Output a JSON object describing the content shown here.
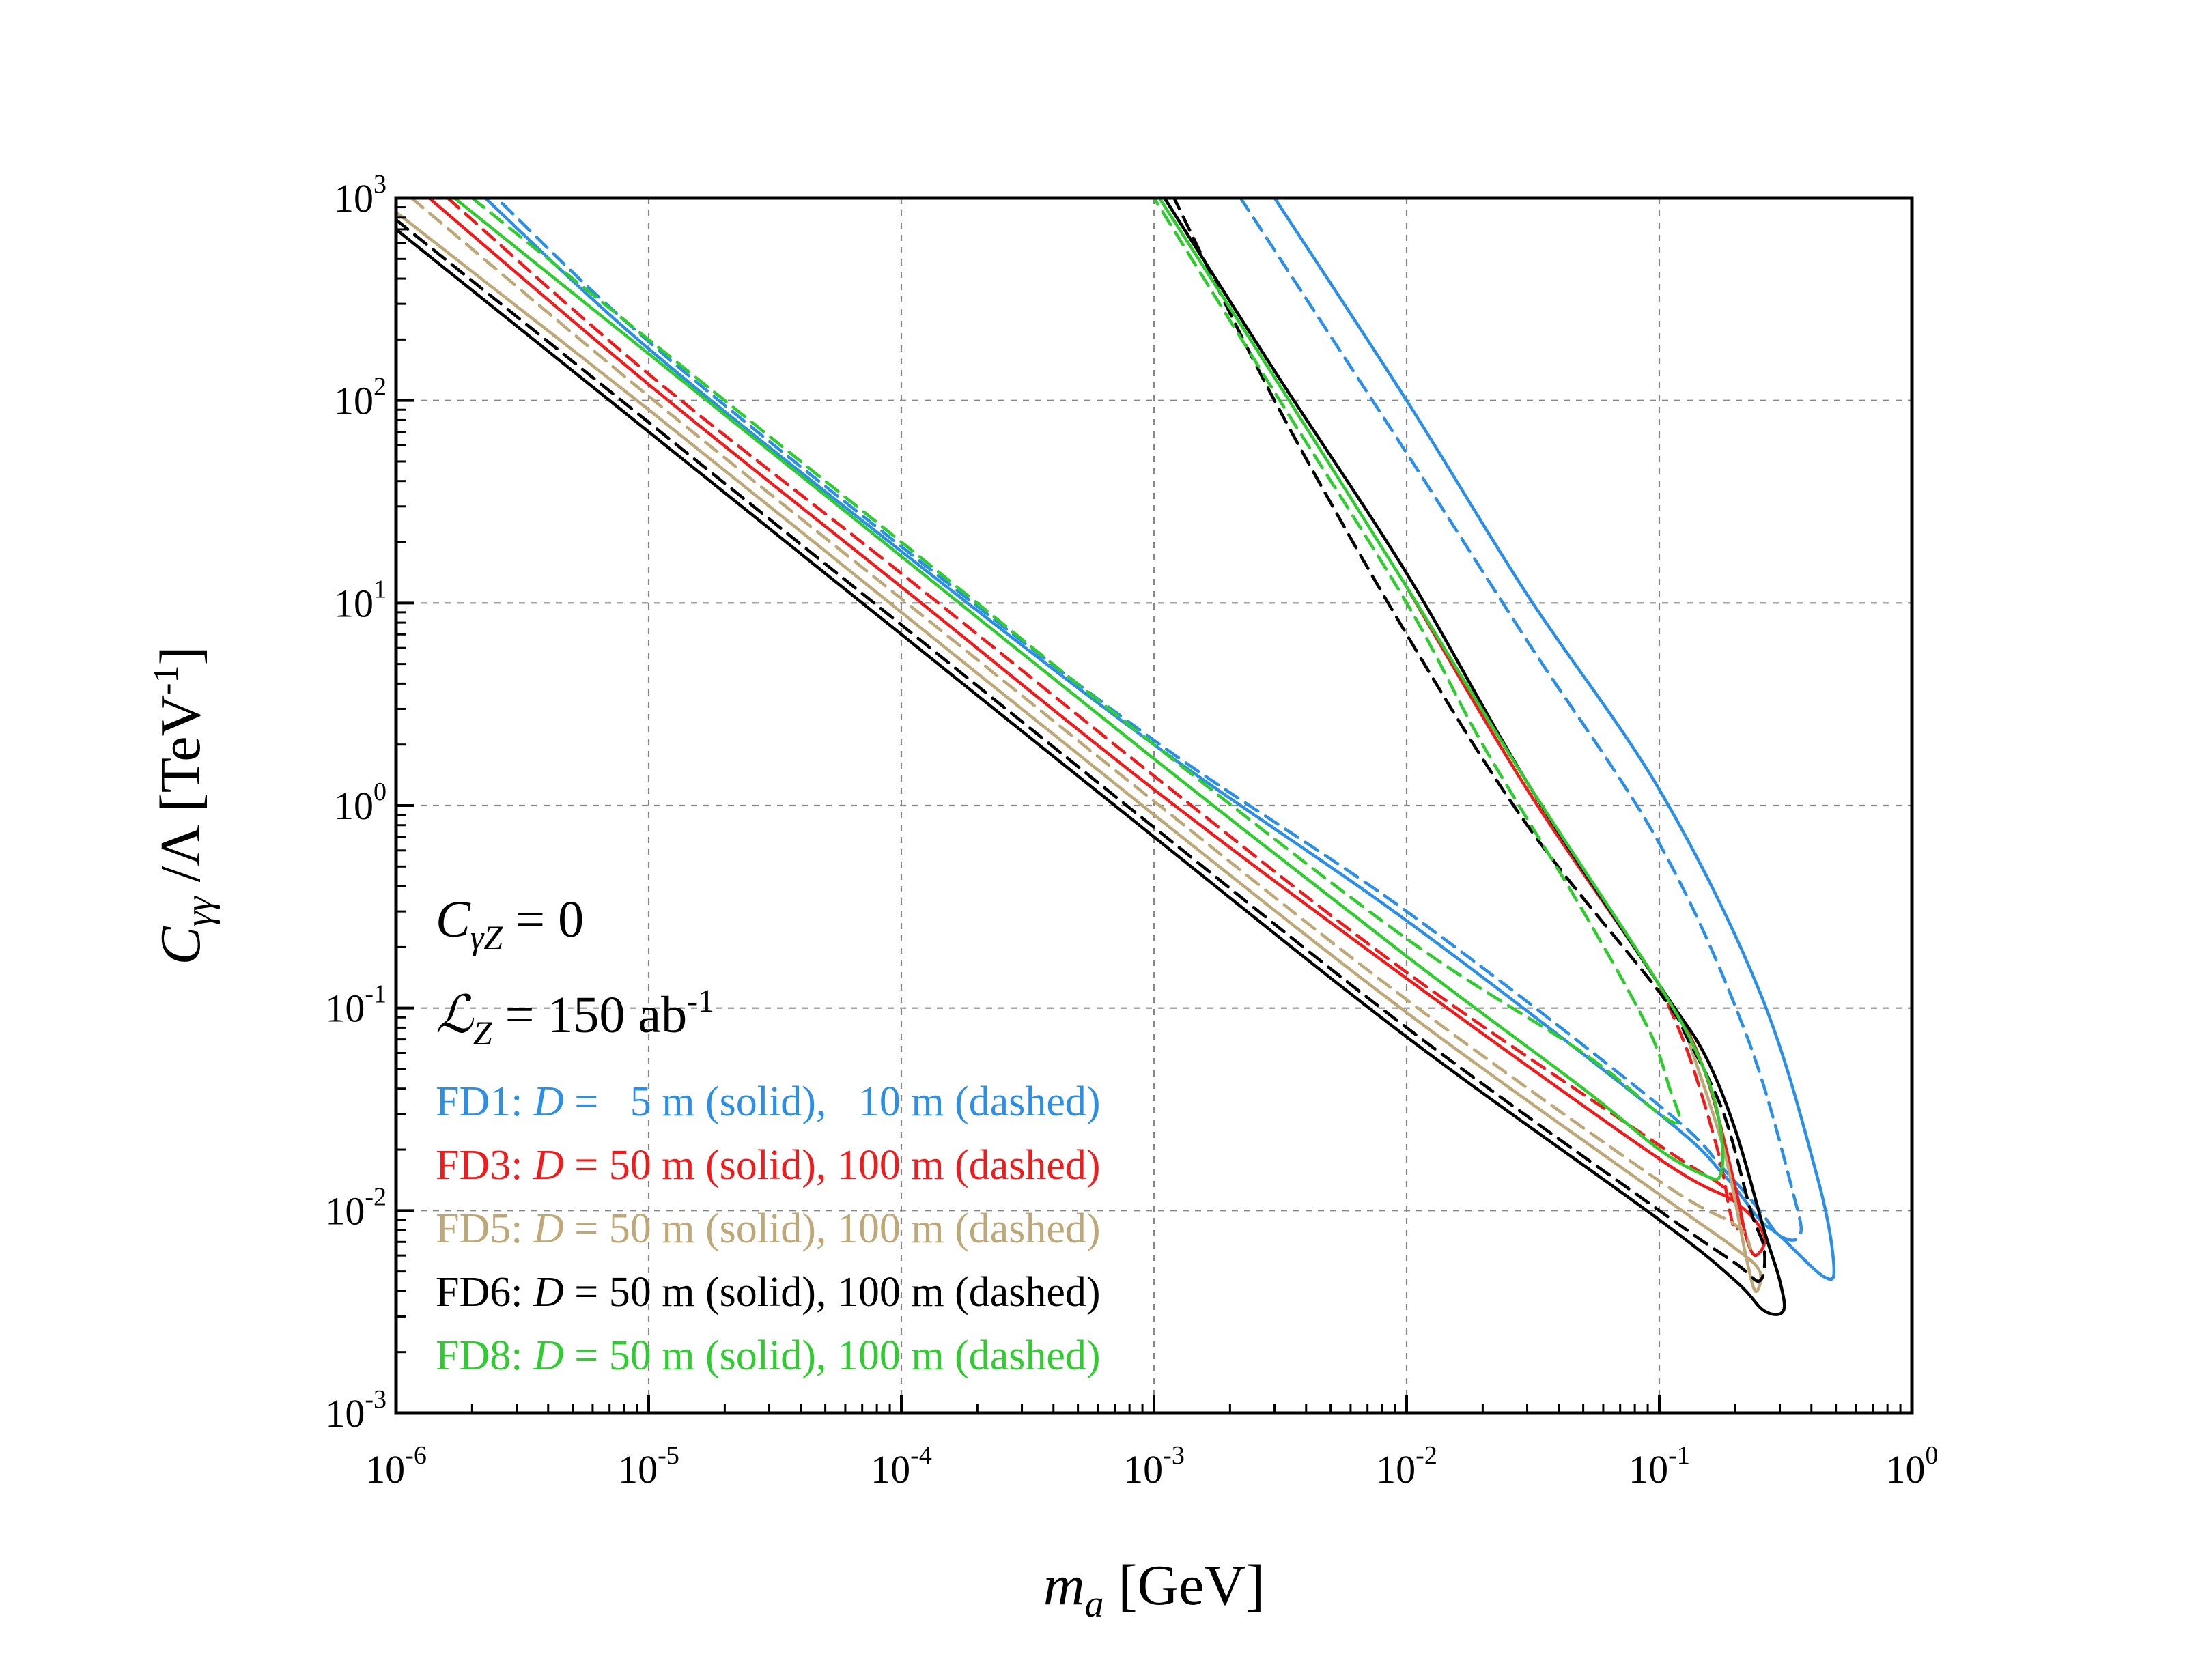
{
  "chart_data": {
    "type": "line",
    "xlabel": {
      "main": "m",
      "sub": "a",
      "unit": " [GeV]"
    },
    "ylabel": {
      "main": "C",
      "sub": "γγ",
      "rest": " /Λ [TeV",
      "sup": "-1",
      "close": "]"
    },
    "xscale": "log",
    "yscale": "log",
    "xlim": [
      1e-06,
      1
    ],
    "ylim": [
      0.001,
      1000
    ],
    "grid": true,
    "x_ticks": [
      {
        "base": "10",
        "exp": "-6"
      },
      {
        "base": "10",
        "exp": "-5"
      },
      {
        "base": "10",
        "exp": "-4"
      },
      {
        "base": "10",
        "exp": "-3"
      },
      {
        "base": "10",
        "exp": "-2"
      },
      {
        "base": "10",
        "exp": "-1"
      },
      {
        "base": "10",
        "exp": "0"
      }
    ],
    "y_ticks": [
      {
        "base": "10",
        "exp": "-3"
      },
      {
        "base": "10",
        "exp": "-2"
      },
      {
        "base": "10",
        "exp": "-1"
      },
      {
        "base": "10",
        "exp": "0"
      },
      {
        "base": "10",
        "exp": "1"
      },
      {
        "base": "10",
        "exp": "2"
      },
      {
        "base": "10",
        "exp": "3"
      }
    ],
    "annotations": [
      {
        "main": "C",
        "sub": "γZ",
        "rest": " = 0"
      },
      {
        "main": "ℒ",
        "sub": "Z",
        "rest": " = 150 ab",
        "sup": "-1"
      }
    ],
    "legend": [
      {
        "detector": "FD1",
        "text_a": ": ",
        "var": "D",
        "text_b": " =   5 m (solid),   10 m (dashed)",
        "color": "#2b8fe6"
      },
      {
        "detector": "FD3",
        "text_a": ": ",
        "var": "D",
        "text_b": " = 50 m (solid), 100 m (dashed)",
        "color": "#ee1c1c"
      },
      {
        "detector": "FD5",
        "text_a": ": ",
        "var": "D",
        "text_b": " = 50 m (solid), 100 m (dashed)",
        "color": "#bfa877"
      },
      {
        "detector": "FD6",
        "text_a": ": ",
        "var": "D",
        "text_b": " = 50 m (solid), 100 m (dashed)",
        "color": "#000000"
      },
      {
        "detector": "FD8",
        "text_a": ": ",
        "var": "D",
        "text_b": " = 50 m (solid), 100 m (dashed)",
        "color": "#2ecc2e"
      }
    ],
    "legend_location": "lower-left",
    "series": [
      {
        "name": "FD1 D=5 m (solid)",
        "color": "#2b8fe6",
        "dash": false,
        "points": [
          [
            0.003,
            1000
          ],
          [
            0.01,
            100
          ],
          [
            0.03,
            11
          ],
          [
            0.1,
            1.2
          ],
          [
            0.25,
            0.12
          ],
          [
            0.42,
            0.015
          ],
          [
            0.49,
            0.0055
          ],
          [
            0.45,
            0.0047
          ],
          [
            0.3,
            0.0075
          ],
          [
            0.25,
            0.009
          ],
          [
            0.18,
            0.015
          ],
          [
            0.1,
            0.03
          ],
          [
            0.01,
            0.27
          ],
          [
            0.001,
            2
          ],
          [
            0.0001,
            18
          ],
          [
            1e-05,
            180
          ],
          [
            2.25e-06,
            1000
          ]
        ]
      },
      {
        "name": "FD1 D=10 m (dashed)",
        "color": "#2b8fe6",
        "dash": true,
        "points": [
          [
            0.0022,
            1000
          ],
          [
            0.01,
            55
          ],
          [
            0.03,
            6.5
          ],
          [
            0.1,
            0.65
          ],
          [
            0.22,
            0.075
          ],
          [
            0.34,
            0.012
          ],
          [
            0.36,
            0.0075
          ],
          [
            0.3,
            0.0075
          ],
          [
            0.25,
            0.01
          ],
          [
            0.18,
            0.016
          ],
          [
            0.1,
            0.033
          ],
          [
            0.01,
            0.3
          ],
          [
            0.001,
            2.1
          ],
          [
            0.0001,
            19
          ],
          [
            1e-05,
            195
          ],
          [
            2.5e-06,
            1000
          ]
        ]
      },
      {
        "name": "FD3 D=50 m (solid)",
        "color": "#ee1c1c",
        "dash": false,
        "points": [
          [
            1.35e-06,
            1000
          ],
          [
            1e-05,
            120
          ],
          [
            0.0001,
            12
          ],
          [
            0.001,
            1.2
          ],
          [
            0.01,
            0.14
          ],
          [
            0.1,
            0.018
          ],
          [
            0.2,
            0.011
          ],
          [
            0.26,
            0.0075
          ],
          [
            0.24,
            0.006
          ],
          [
            0.22,
            0.0075
          ],
          [
            0.2,
            0.013
          ],
          [
            0.15,
            0.05
          ],
          [
            0.1,
            0.13
          ],
          [
            0.03,
            1.2
          ],
          [
            0.01,
            12
          ]
        ]
      },
      {
        "name": "FD3 D=100 m (dashed)",
        "color": "#ee1c1c",
        "dash": true,
        "points": [
          [
            1.6e-06,
            1000
          ],
          [
            1e-05,
            135
          ],
          [
            0.0001,
            14
          ],
          [
            0.001,
            1.4
          ],
          [
            0.01,
            0.15
          ],
          [
            0.1,
            0.021
          ],
          [
            0.18,
            0.013
          ],
          [
            0.21,
            0.0095
          ],
          [
            0.2,
            0.008
          ],
          [
            0.19,
            0.01
          ],
          [
            0.17,
            0.02
          ],
          [
            0.13,
            0.06
          ],
          [
            0.1,
            0.13
          ]
        ]
      },
      {
        "name": "FD5 D=50 m (solid)",
        "color": "#bfa877",
        "dash": false,
        "points": [
          [
            1e-06,
            850
          ],
          [
            1e-05,
            90
          ],
          [
            0.0001,
            9
          ],
          [
            0.001,
            0.9
          ],
          [
            0.01,
            0.095
          ],
          [
            0.1,
            0.012
          ],
          [
            0.2,
            0.0065
          ],
          [
            0.25,
            0.005
          ],
          [
            0.24,
            0.004
          ],
          [
            0.22,
            0.006
          ],
          [
            0.18,
            0.02
          ],
          [
            0.13,
            0.07
          ]
        ]
      },
      {
        "name": "FD5 D=100 m (dashed)",
        "color": "#bfa877",
        "dash": true,
        "points": [
          [
            1.15e-06,
            1000
          ],
          [
            1e-05,
            105
          ],
          [
            0.0001,
            10.5
          ],
          [
            0.001,
            1.05
          ],
          [
            0.01,
            0.11
          ],
          [
            0.1,
            0.014
          ],
          [
            0.2,
            0.0085
          ],
          [
            0.23,
            0.0065
          ]
        ]
      },
      {
        "name": "FD6 D=50 m (solid)",
        "color": "#000000",
        "dash": false,
        "points": [
          [
            1e-06,
            700
          ],
          [
            1e-05,
            70
          ],
          [
            0.0001,
            7
          ],
          [
            0.001,
            0.7
          ],
          [
            0.01,
            0.072
          ],
          [
            0.1,
            0.009
          ],
          [
            0.2,
            0.0045
          ],
          [
            0.26,
            0.0032
          ],
          [
            0.31,
            0.0032
          ],
          [
            0.3,
            0.0045
          ],
          [
            0.26,
            0.008
          ],
          [
            0.2,
            0.025
          ],
          [
            0.15,
            0.06
          ],
          [
            0.1,
            0.13
          ],
          [
            0.03,
            1.3
          ],
          [
            0.01,
            14
          ],
          [
            0.003,
            140
          ],
          [
            0.0011,
            1000
          ]
        ]
      },
      {
        "name": "FD6 D=100 m (dashed)",
        "color": "#000000",
        "dash": true,
        "points": [
          [
            1e-06,
            780
          ],
          [
            1e-05,
            78
          ],
          [
            0.0001,
            7.8
          ],
          [
            0.001,
            0.78
          ],
          [
            0.01,
            0.08
          ],
          [
            0.1,
            0.01
          ],
          [
            0.2,
            0.0055
          ],
          [
            0.25,
            0.0045
          ],
          [
            0.26,
            0.0065
          ],
          [
            0.23,
            0.01
          ],
          [
            0.18,
            0.03
          ],
          [
            0.13,
            0.07
          ],
          [
            0.1,
            0.12
          ],
          [
            0.03,
            0.8
          ],
          [
            0.01,
            7
          ],
          [
            0.003,
            100
          ],
          [
            0.0012,
            1000
          ]
        ]
      },
      {
        "name": "FD8 D=50 m (solid)",
        "color": "#2ecc2e",
        "dash": false,
        "points": [
          [
            1.7e-06,
            1000
          ],
          [
            1e-05,
            170
          ],
          [
            0.0001,
            17
          ],
          [
            0.001,
            1.7
          ],
          [
            0.01,
            0.18
          ],
          [
            0.05,
            0.04
          ],
          [
            0.1,
            0.02
          ],
          [
            0.15,
            0.015
          ],
          [
            0.175,
            0.015
          ],
          [
            0.175,
            0.025
          ],
          [
            0.15,
            0.05
          ],
          [
            0.1,
            0.13
          ],
          [
            0.03,
            1.3
          ],
          [
            0.01,
            12
          ],
          [
            0.003,
            130
          ],
          [
            0.00105,
            1000
          ]
        ]
      },
      {
        "name": "FD8 D=100 m (dashed)",
        "color": "#2ecc2e",
        "dash": true,
        "points": [
          [
            2e-06,
            1000
          ],
          [
            1e-05,
            200
          ],
          [
            0.0001,
            20
          ],
          [
            0.001,
            2
          ],
          [
            0.01,
            0.22
          ],
          [
            0.05,
            0.06
          ],
          [
            0.1,
            0.03
          ],
          [
            0.12,
            0.028
          ],
          [
            0.11,
            0.04
          ],
          [
            0.09,
            0.08
          ],
          [
            0.05,
            0.3
          ],
          [
            0.02,
            2
          ],
          [
            0.01,
            10
          ],
          [
            0.003,
            110
          ],
          [
            0.001,
            1000
          ]
        ]
      }
    ]
  }
}
